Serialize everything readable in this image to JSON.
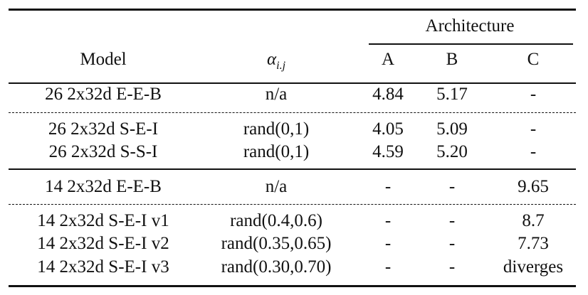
{
  "table": {
    "header": {
      "group_label": "Architecture",
      "model_label": "Model",
      "alpha_symbol": "α",
      "alpha_subscript": "i.j",
      "col_a": "A",
      "col_b": "B",
      "col_c": "C"
    },
    "rows": [
      {
        "model": "26 2x32d E-E-B",
        "alpha": "n/a",
        "a": "4.84",
        "b": "5.17",
        "c": "-"
      },
      {
        "model": "26 2x32d S-E-I",
        "alpha": "rand(0,1)",
        "a": "4.05",
        "b": "5.09",
        "c": "-"
      },
      {
        "model": "26 2x32d S-S-I",
        "alpha": "rand(0,1)",
        "a": "4.59",
        "b": "5.20",
        "c": "-"
      },
      {
        "model": "14 2x32d E-E-B",
        "alpha": "n/a",
        "a": "-",
        "b": "-",
        "c": "9.65"
      },
      {
        "model": "14 2x32d S-E-I v1",
        "alpha": "rand(0.4,0.6)",
        "a": "-",
        "b": "-",
        "c": "8.7"
      },
      {
        "model": "14 2x32d S-E-I v2",
        "alpha": "rand(0.35,0.65)",
        "a": "-",
        "b": "-",
        "c": "7.73"
      },
      {
        "model": "14 2x32d S-E-I v3",
        "alpha": "rand(0.30,0.70)",
        "a": "-",
        "b": "-",
        "c": "diverges"
      }
    ]
  }
}
